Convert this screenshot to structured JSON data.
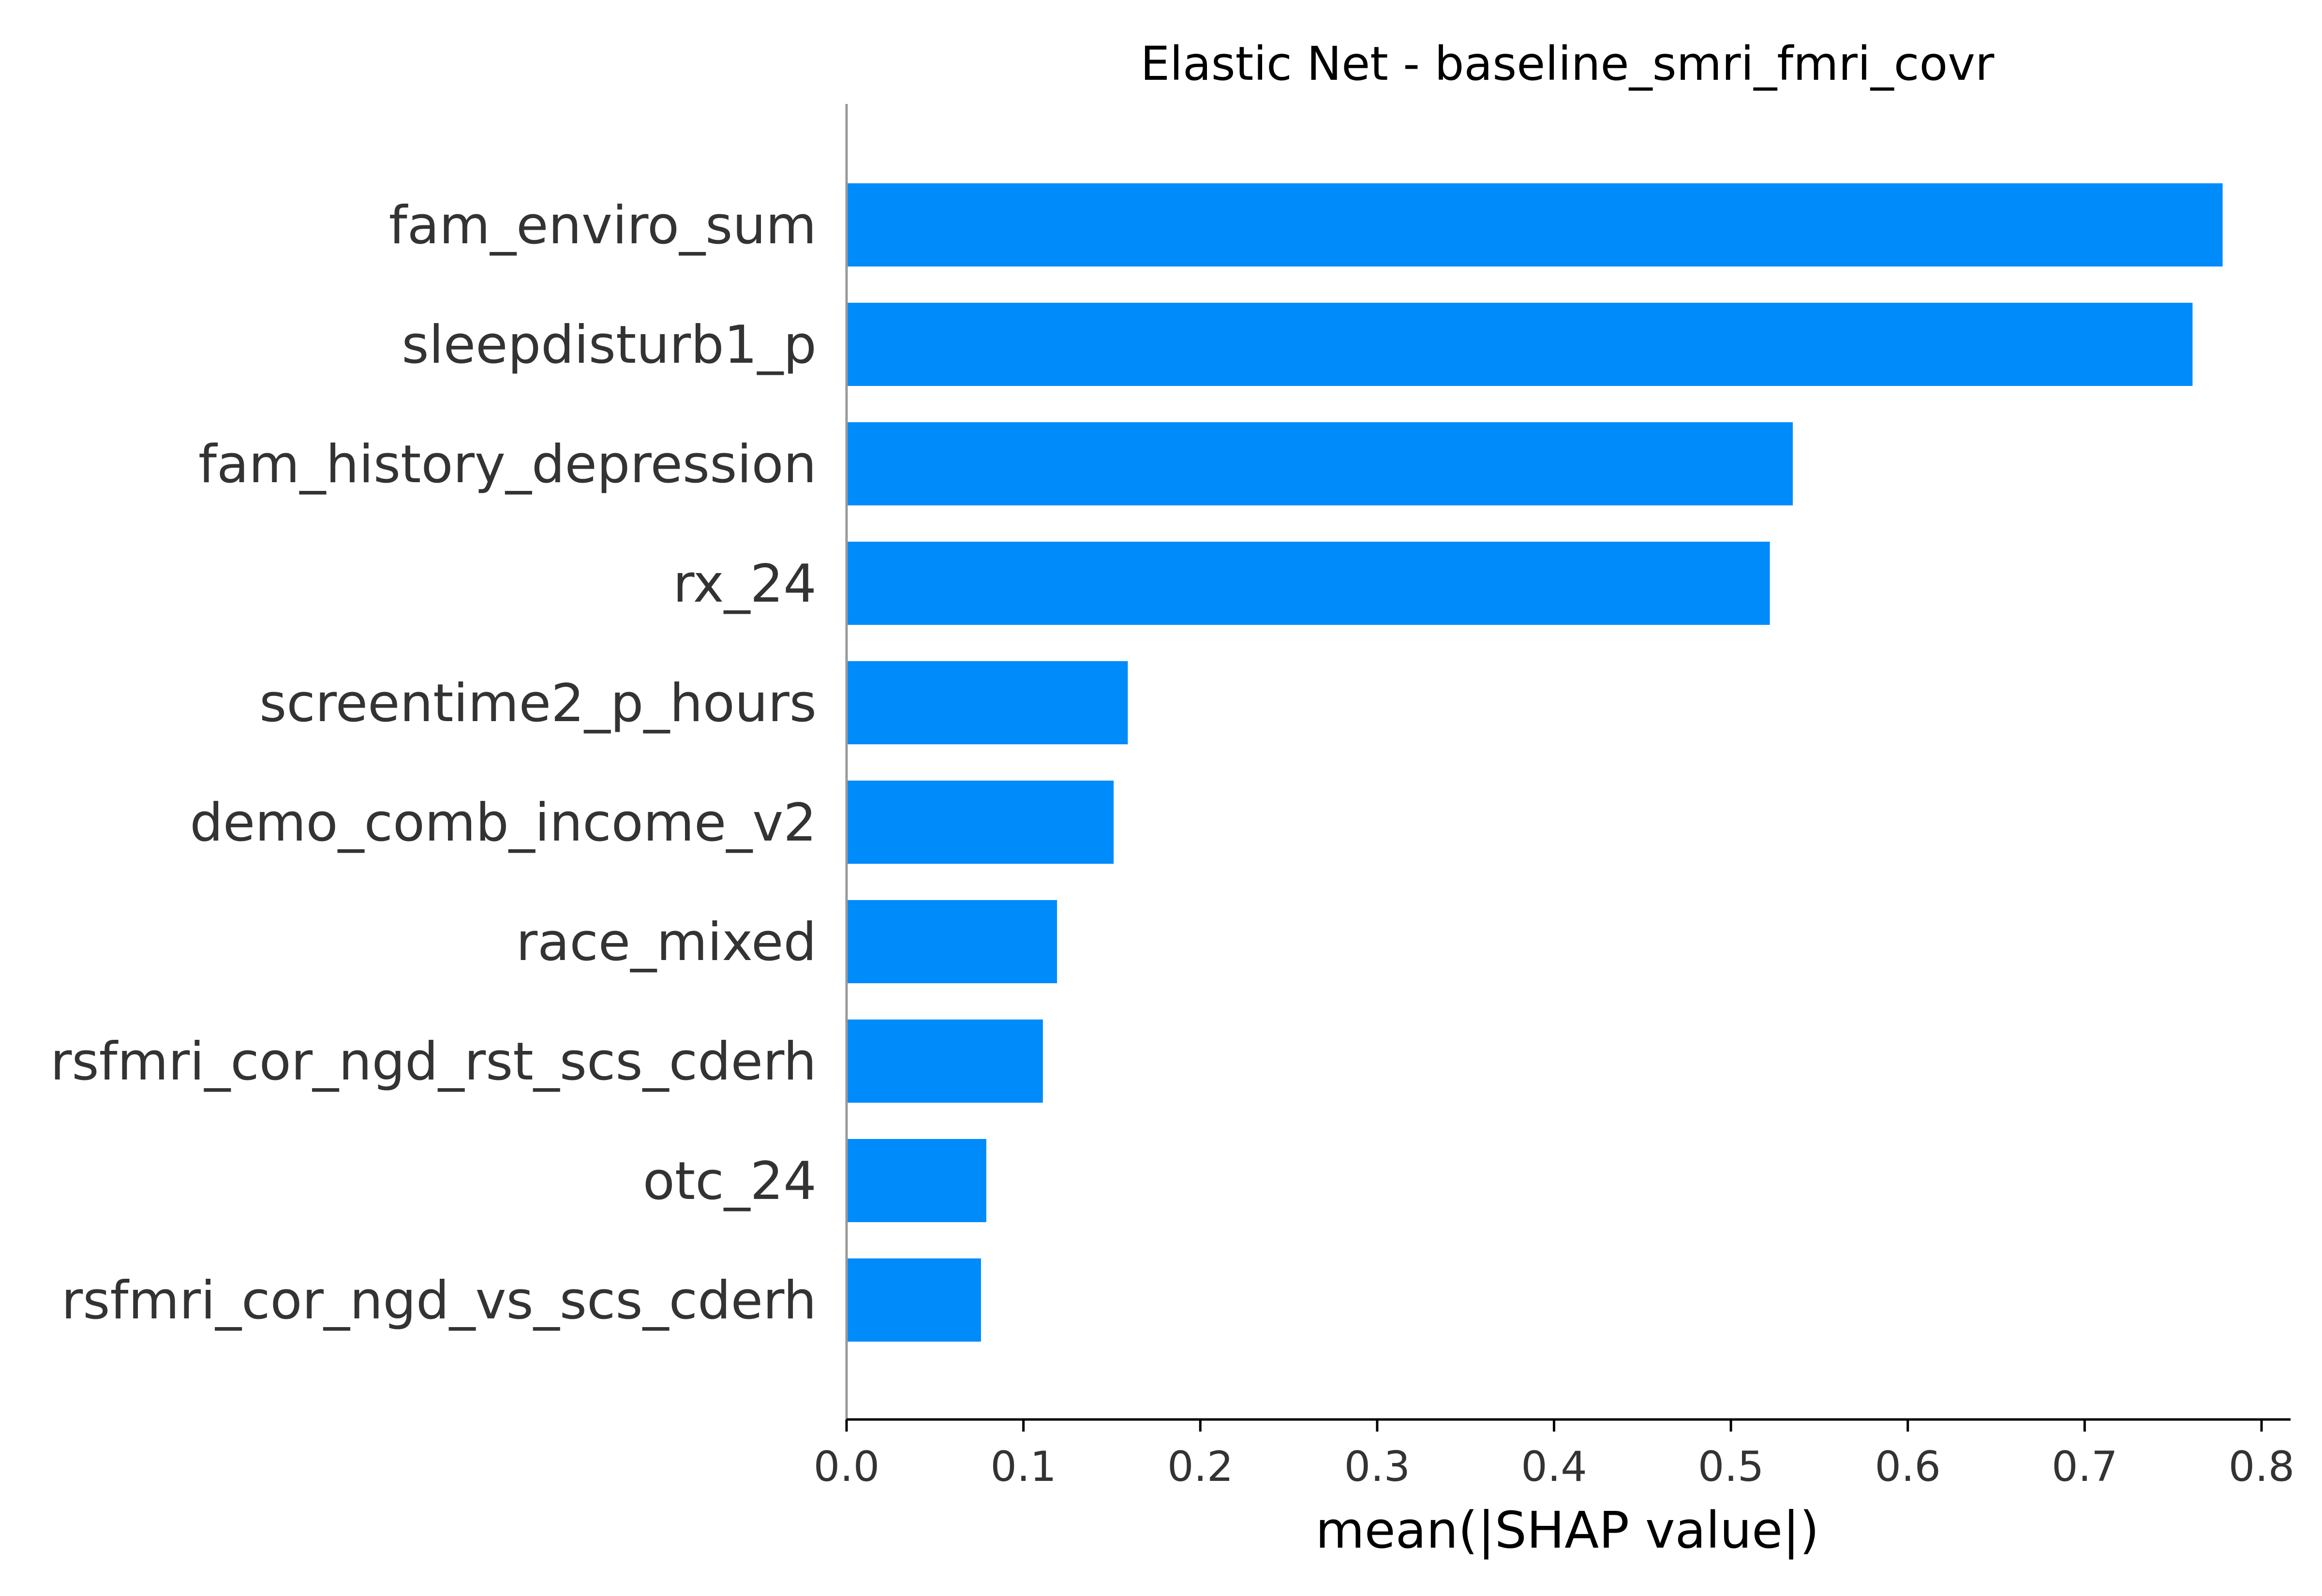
{
  "chart_data": {
    "type": "bar",
    "orientation": "horizontal",
    "title": "Elastic Net - baseline_smri_fmri_covr",
    "xlabel": "mean(|SHAP value|)",
    "ylabel": "",
    "xlim": [
      0,
      0.82
    ],
    "xticks": [
      0.0,
      0.1,
      0.2,
      0.3,
      0.4,
      0.5,
      0.6,
      0.7,
      0.8
    ],
    "xtick_labels": [
      "0.0",
      "0.1",
      "0.2",
      "0.3",
      "0.4",
      "0.5",
      "0.6",
      "0.7",
      "0.8"
    ],
    "grid": false,
    "bar_color": "#008bfb",
    "categories": [
      "fam_enviro_sum",
      "sleepdisturb1_p",
      "fam_history_depression",
      "rx_24",
      "screentime2_p_hours",
      "demo_comb_income_v2",
      "race_mixed",
      "rsfmri_cor_ngd_rst_scs_cderh",
      "otc_24",
      "rsfmri_cor_ngd_vs_scs_cderh"
    ],
    "values": [
      0.778,
      0.761,
      0.535,
      0.522,
      0.159,
      0.151,
      0.119,
      0.111,
      0.079,
      0.076
    ]
  }
}
